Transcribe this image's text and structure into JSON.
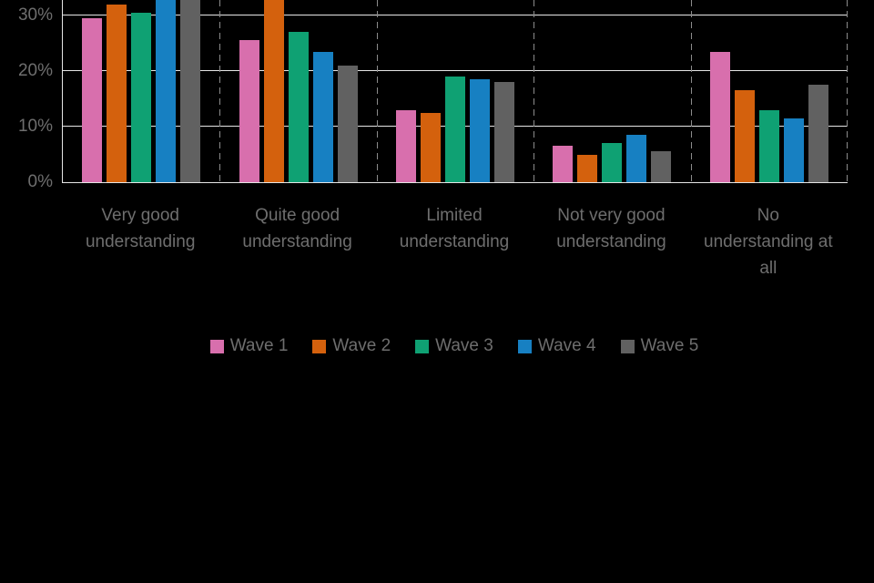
{
  "page": {
    "background": "#000000"
  },
  "chart_data": {
    "type": "bar",
    "title": "",
    "xlabel": "",
    "ylabel": "",
    "categories": [
      "Very good understanding",
      "Quite good understanding",
      "Limited understanding",
      "Not very good understanding",
      "No understanding at all"
    ],
    "categories_display": [
      "Very good\nunderstanding",
      "Quite good\nunderstanding",
      "Limited\nunderstanding",
      "Not very good\nunderstanding",
      "No\nunderstanding at\nall"
    ],
    "series": [
      {
        "name": "Wave 1",
        "color": "#d86fad",
        "values": [
          29.5,
          25.5,
          13.0,
          6.5,
          23.5
        ]
      },
      {
        "name": "Wave 2",
        "color": "#d4610d",
        "values": [
          32.0,
          34.0,
          12.5,
          5.0,
          16.5
        ]
      },
      {
        "name": "Wave 3",
        "color": "#0fa173",
        "values": [
          30.5,
          27.0,
          19.0,
          7.0,
          13.0
        ]
      },
      {
        "name": "Wave 4",
        "color": "#1780c2",
        "values": [
          35.0,
          23.5,
          18.5,
          8.5,
          11.5
        ]
      },
      {
        "name": "Wave 5",
        "color": "#616161",
        "values": [
          36.0,
          21.0,
          18.0,
          5.5,
          17.5
        ]
      }
    ],
    "y_axis": {
      "ticks": [
        {
          "label": "0%",
          "value": 0
        },
        {
          "label": "10%",
          "value": 10
        },
        {
          "label": "20%",
          "value": 20
        },
        {
          "label": "30%",
          "value": 30
        }
      ],
      "visible_max": 32.8
    },
    "grid": {
      "horizontal": true,
      "vertical_separators": "dashed"
    },
    "legend_position": "bottom"
  },
  "colors": {
    "gridline": "#e6e6e6",
    "separator": "#8c8c8c",
    "axis_text": "#6e6e6e"
  }
}
